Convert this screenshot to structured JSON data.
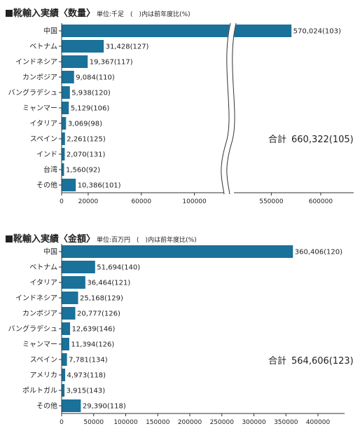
{
  "charts": [
    {
      "title": "靴輸入実績〈数量〉",
      "unit_note": "単位:千足　(　)内は前年度比(%)",
      "total_label": "合計",
      "total_value": "660,322(105)",
      "bar_color": "#1a7199"
    },
    {
      "title": "靴輸入実績〈金額〉",
      "unit_note": "単位:百万円　(　)内は前年度比(%)",
      "total_label": "合計",
      "total_value": "564,606(123)",
      "bar_color": "#1a7199"
    }
  ],
  "chart_data": [
    {
      "type": "bar",
      "orientation": "horizontal",
      "title": "靴輸入実績〈数量〉",
      "categories": [
        "中国",
        "ベトナム",
        "インドネシア",
        "カンボジア",
        "バングラデシュ",
        "ミャンマー",
        "イタリア",
        "スペイン",
        "インド",
        "台湾",
        "その他"
      ],
      "values": [
        570024,
        31428,
        19367,
        9084,
        5938,
        5129,
        3069,
        2261,
        2070,
        1560,
        10386
      ],
      "value_labels": [
        "570,024(103)",
        "31,428(127)",
        "19,367(117)",
        "9,084(110)",
        "5,938(120)",
        "5,129(106)",
        "3,069(98)",
        "2,261(125)",
        "2,070(131)",
        "1,560(92)",
        "10,386(101)"
      ],
      "yoy_percent": [
        103,
        127,
        117,
        110,
        120,
        106,
        98,
        125,
        131,
        92,
        101
      ],
      "x_ticks": [
        0,
        20000,
        60000,
        100000,
        550000,
        600000
      ],
      "x_tick_labels": [
        "0",
        "20000",
        "60000",
        "100000",
        "550000",
        "600000"
      ],
      "axis_break": [
        125000,
        510000
      ],
      "xlim": [
        0,
        610000
      ],
      "grid": false
    },
    {
      "type": "bar",
      "orientation": "horizontal",
      "title": "靴輸入実績〈金額〉",
      "categories": [
        "中国",
        "ベトナム",
        "イタリア",
        "インドネシア",
        "カンボジア",
        "バングラデシュ",
        "ミャンマー",
        "スペイン",
        "アメリカ",
        "ポルトガル",
        "その他"
      ],
      "values": [
        360406,
        51694,
        36464,
        25168,
        20777,
        12639,
        11394,
        7781,
        4973,
        3915,
        29390
      ],
      "value_labels": [
        "360,406(120)",
        "51,694(140)",
        "36,464(121)",
        "25,168(129)",
        "20,777(126)",
        "12,639(146)",
        "11,394(126)",
        "7,781(134)",
        "4,973(118)",
        "3,915(143)",
        "29,390(118)"
      ],
      "yoy_percent": [
        120,
        140,
        121,
        129,
        126,
        146,
        126,
        134,
        118,
        143,
        118
      ],
      "x_ticks": [
        0,
        50000,
        100000,
        150000,
        200000,
        250000,
        300000,
        350000,
        400000
      ],
      "x_tick_labels": [
        "0",
        "50000",
        "100000",
        "150000",
        "200000",
        "250000",
        "300000",
        "350000",
        "400000"
      ],
      "xlim": [
        0,
        440000
      ],
      "grid": false
    }
  ]
}
